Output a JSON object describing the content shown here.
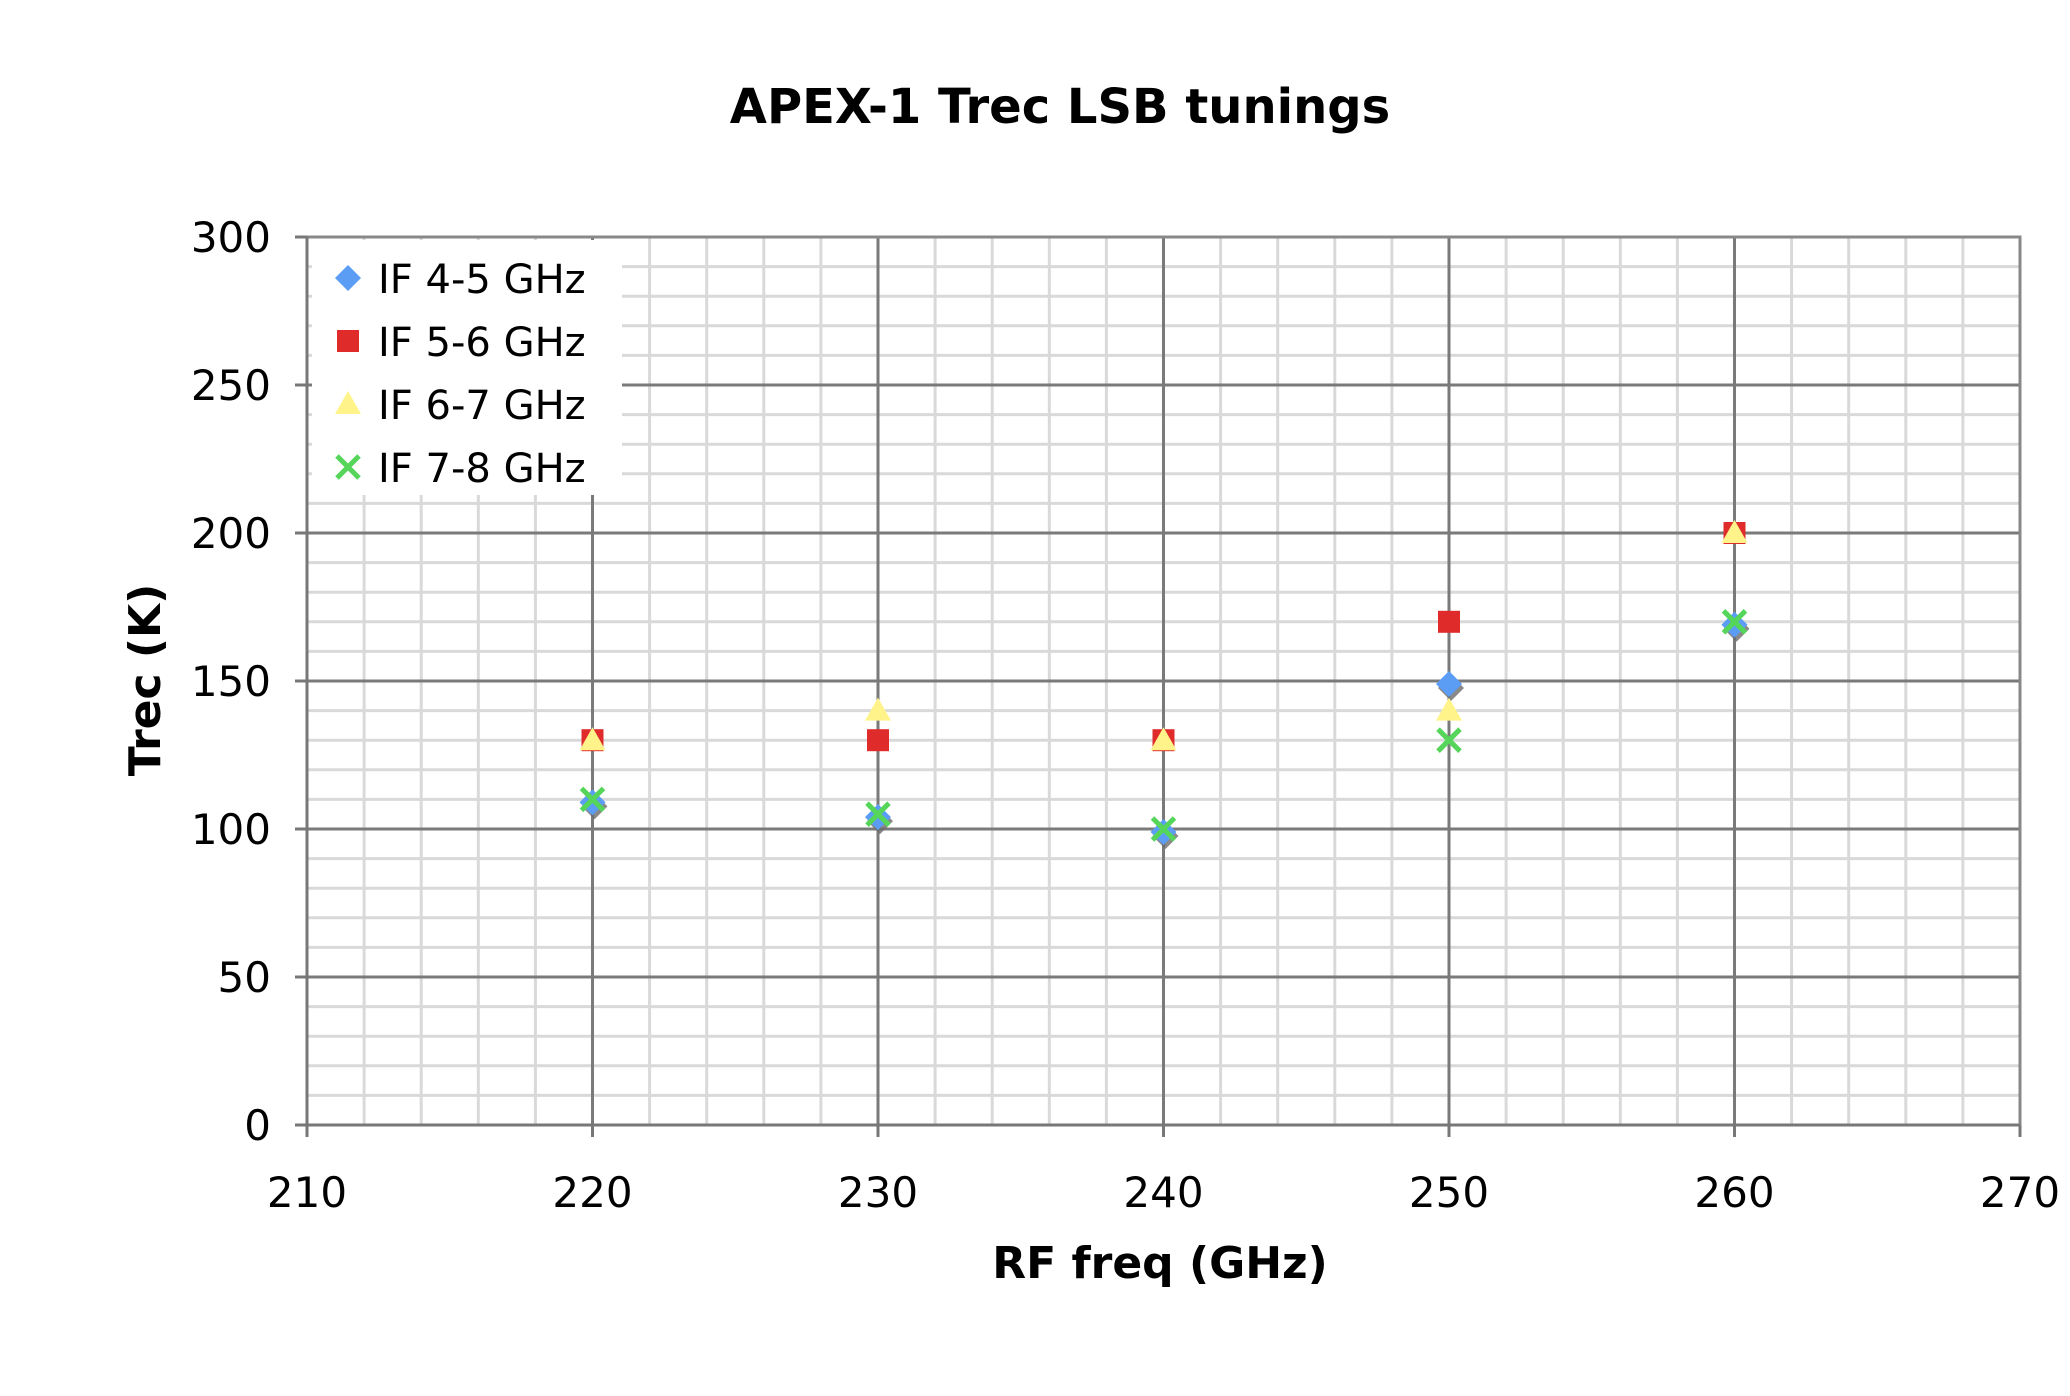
{
  "chart_data": {
    "type": "scatter",
    "title": "APEX-1 Trec LSB tunings",
    "xlabel": "RF freq (GHz)",
    "ylabel": "Trec (K)",
    "xlim": [
      210,
      270
    ],
    "ylim": [
      0,
      300
    ],
    "x_major_step": 10,
    "x_minor_step": 2,
    "y_major_step": 50,
    "y_minor_step": 10,
    "grid": true,
    "legend_position": "top-left",
    "x_ticks": [
      "210",
      "220",
      "230",
      "240",
      "250",
      "260",
      "270"
    ],
    "y_ticks": [
      "0",
      "50",
      "100",
      "150",
      "200",
      "250",
      "300"
    ],
    "series": [
      {
        "name": "IF 4-5 GHz",
        "marker": "diamond",
        "color": "#5B9CF5",
        "x": [
          220,
          230,
          240,
          250,
          260
        ],
        "y": [
          109,
          104,
          99,
          149,
          169
        ]
      },
      {
        "name": "IF 5-6 GHz",
        "marker": "square",
        "color": "#E02B2B",
        "x": [
          220,
          230,
          240,
          250,
          260
        ],
        "y": [
          130,
          130,
          130,
          170,
          200
        ]
      },
      {
        "name": "IF 6-7 GHz",
        "marker": "triangle",
        "color": "#FFF38A",
        "x": [
          220,
          230,
          240,
          250,
          260
        ],
        "y": [
          130,
          140,
          130,
          140,
          200
        ]
      },
      {
        "name": "IF 7-8 GHz",
        "marker": "x",
        "color": "#55D65A",
        "x": [
          220,
          230,
          240,
          250,
          260
        ],
        "y": [
          110,
          105,
          100,
          130,
          170
        ]
      }
    ]
  }
}
